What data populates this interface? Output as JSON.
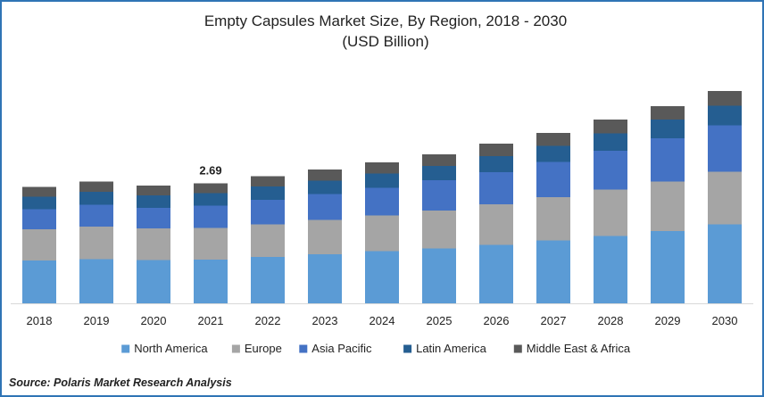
{
  "chart_data": {
    "type": "bar",
    "stacked": true,
    "title": "Empty Capsules Market Size, By Region, 2018 - 2030",
    "subtitle": "(USD Billion)",
    "xlabel": "",
    "ylabel": "",
    "ylim": [
      0,
      5.4
    ],
    "grid": false,
    "legend_position": "bottom",
    "categories": [
      "2018",
      "2019",
      "2020",
      "2021",
      "2022",
      "2023",
      "2024",
      "2025",
      "2026",
      "2027",
      "2028",
      "2029",
      "2030"
    ],
    "series": [
      {
        "name": "North America",
        "color": "#5b9bd5",
        "values": [
          0.96,
          0.99,
          0.97,
          0.98,
          1.04,
          1.1,
          1.17,
          1.23,
          1.31,
          1.41,
          1.51,
          1.62,
          1.77
        ]
      },
      {
        "name": "Europe",
        "color": "#a5a5a5",
        "values": [
          0.7,
          0.73,
          0.71,
          0.71,
          0.73,
          0.77,
          0.8,
          0.85,
          0.91,
          0.97,
          1.04,
          1.11,
          1.18
        ]
      },
      {
        "name": "Asia Pacific",
        "color": "#4472c4",
        "values": [
          0.45,
          0.49,
          0.46,
          0.5,
          0.55,
          0.58,
          0.62,
          0.68,
          0.72,
          0.79,
          0.87,
          0.97,
          1.04
        ]
      },
      {
        "name": "Latin America",
        "color": "#255e91",
        "values": [
          0.28,
          0.29,
          0.28,
          0.28,
          0.3,
          0.3,
          0.32,
          0.32,
          0.36,
          0.36,
          0.39,
          0.42,
          0.44
        ]
      },
      {
        "name": "Middle East & Africa",
        "color": "#595959",
        "values": [
          0.22,
          0.23,
          0.22,
          0.22,
          0.23,
          0.25,
          0.25,
          0.26,
          0.28,
          0.29,
          0.31,
          0.3,
          0.33
        ]
      }
    ],
    "data_labels": [
      {
        "category": "2021",
        "text": "2.69"
      }
    ]
  },
  "source": "Source: Polaris  Market Research Analysis"
}
